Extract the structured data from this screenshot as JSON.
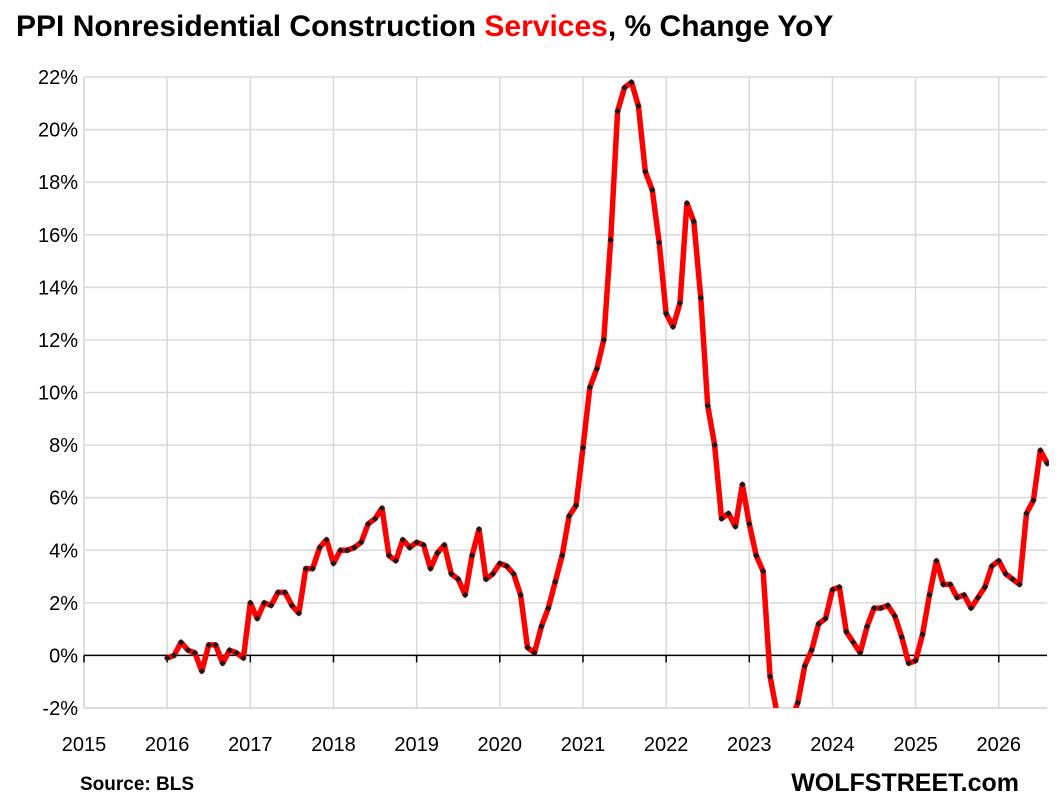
{
  "header": {
    "title_part1": "PPI Nonresidential Construction ",
    "title_highlight": "Services",
    "title_part2": ", % Change YoY"
  },
  "footer": {
    "source": "Source: BLS",
    "brand": "WOLFSTREET.com"
  },
  "colors": {
    "line": "#ff0000",
    "marker": "#1a1a1a",
    "grid": "#d9d9d9",
    "axis": "#000000",
    "title_highlight": "#ff0000"
  },
  "chart_data": {
    "type": "line",
    "title": "PPI Nonresidential Construction Services, % Change YoY",
    "xlabel": "",
    "ylabel": "",
    "grid": true,
    "x_start": 2016.0,
    "x_step_months": 1,
    "xlim": [
      2015,
      2026.58
    ],
    "ylim": [
      -2,
      22
    ],
    "x_ticks": [
      "2015",
      "2016",
      "2017",
      "2018",
      "2019",
      "2020",
      "2021",
      "2022",
      "2023",
      "2024",
      "2025",
      "2026"
    ],
    "y_ticks": [
      "-2%",
      "0%",
      "2%",
      "4%",
      "6%",
      "8%",
      "10%",
      "12%",
      "14%",
      "16%",
      "18%",
      "20%",
      "22%"
    ],
    "series": [
      {
        "values": [
          -0.1,
          0.0,
          0.5,
          0.2,
          0.1,
          -0.6,
          0.4,
          0.4,
          -0.3,
          0.2,
          0.1,
          -0.1,
          2.0,
          1.4,
          2.0,
          1.9,
          2.4,
          2.4,
          1.9,
          1.6,
          3.3,
          3.3,
          4.1,
          4.4,
          3.5,
          4.0,
          4.0,
          4.1,
          4.3,
          5.0,
          5.2,
          5.6,
          3.8,
          3.6,
          4.4,
          4.1,
          4.3,
          4.2,
          3.3,
          3.9,
          4.2,
          3.1,
          2.9,
          2.3,
          3.8,
          4.8,
          2.9,
          3.1,
          3.5,
          3.4,
          3.1,
          2.3,
          0.3,
          0.1,
          1.1,
          1.8,
          2.8,
          3.8,
          5.3,
          5.7,
          7.9,
          10.2,
          10.9,
          12.0,
          15.8,
          20.7,
          21.6,
          21.8,
          20.9,
          18.4,
          17.7,
          15.7,
          13.0,
          12.5,
          13.4,
          17.2,
          16.5,
          13.6,
          9.5,
          8.0,
          5.2,
          5.4,
          4.9,
          6.5,
          5.0,
          3.8,
          3.2,
          -0.8,
          -2.2,
          -2.5,
          -2.5,
          -1.8,
          -0.4,
          0.2,
          1.2,
          1.4,
          2.5,
          2.6,
          0.9,
          0.5,
          0.1,
          1.1,
          1.8,
          1.8,
          1.9,
          1.5,
          0.7,
          -0.3,
          -0.2,
          0.8,
          2.3,
          3.6,
          2.7,
          2.7,
          2.2,
          2.3,
          1.8,
          2.2,
          2.6,
          3.4,
          3.6,
          3.1,
          2.9,
          2.7,
          5.4,
          5.9,
          7.8,
          7.3
        ]
      }
    ]
  }
}
